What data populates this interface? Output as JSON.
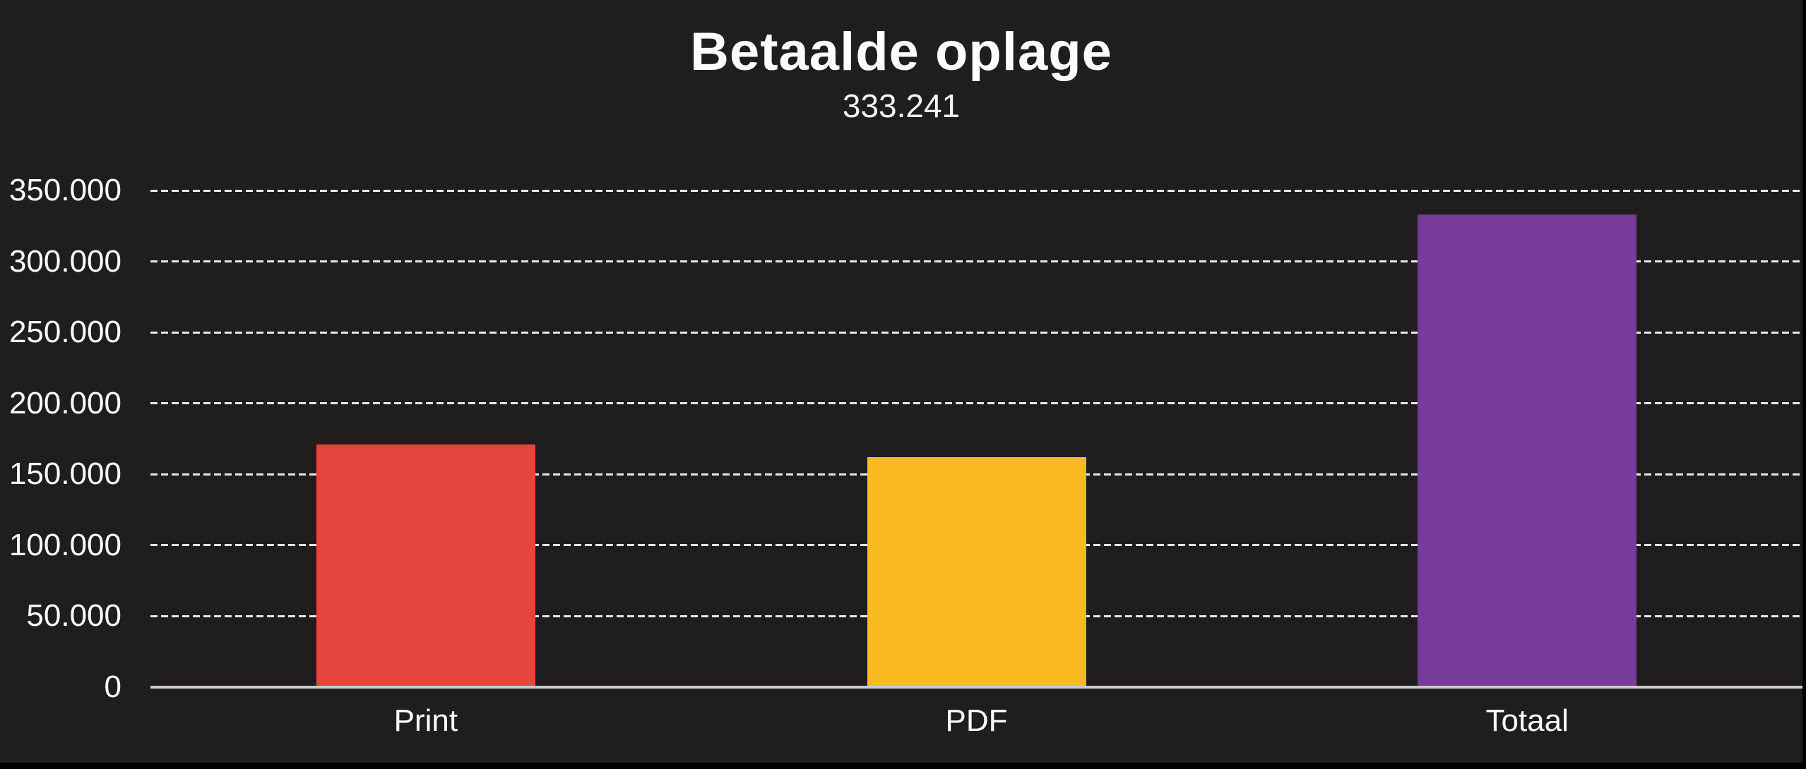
{
  "chart_data": {
    "type": "bar",
    "title": "Betaalde oplage",
    "subtitle": "333.241",
    "categories": [
      "Print",
      "PDF",
      "Totaal"
    ],
    "values": [
      171000,
      162000,
      333241
    ],
    "bar_colors": [
      "#e6453f",
      "#f9bb21",
      "#793b9a"
    ],
    "ylim": [
      0,
      350000
    ],
    "y_ticks": [
      0,
      50000,
      100000,
      150000,
      200000,
      250000,
      300000,
      350000
    ],
    "y_tick_labels": [
      "0",
      "50.000",
      "100.000",
      "150.000",
      "200.000",
      "250.000",
      "300.000",
      "350.000"
    ],
    "xlabel": "",
    "ylabel": "",
    "grid": "horizontal-dashed",
    "legend": "none",
    "colors": {
      "background": "#1f1d1d",
      "page_edge": "#000000",
      "gridline": "#e7e7e7",
      "axis_line": "#cbcbcb",
      "text": "#ffffff"
    }
  }
}
